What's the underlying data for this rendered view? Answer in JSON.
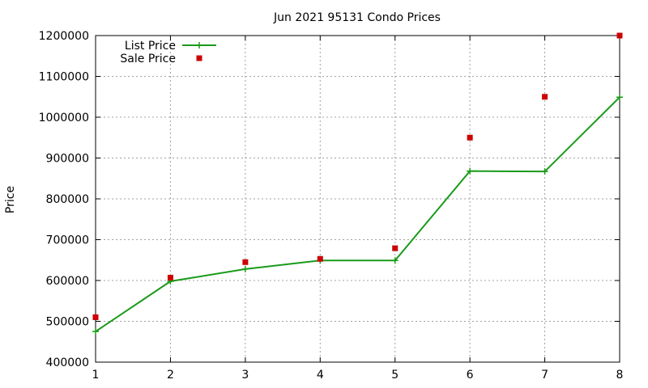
{
  "chart_data": {
    "type": "line",
    "title": "Jun 2021 95131 Condo Prices",
    "xlabel": "",
    "ylabel": "Price",
    "xlim": [
      1,
      8
    ],
    "ylim": [
      400000,
      1200000
    ],
    "x_ticks": [
      "1",
      "2",
      "3",
      "4",
      "5",
      "6",
      "7",
      "8"
    ],
    "y_ticks": [
      "400000",
      "500000",
      "600000",
      "700000",
      "800000",
      "900000",
      "1000000",
      "1100000",
      "1200000"
    ],
    "grid": true,
    "legend_position": "top-left",
    "series": [
      {
        "name": "List Price",
        "style": "line-with-plus-markers",
        "color": "#1a9a1a",
        "x": [
          1,
          2,
          3,
          4,
          5,
          6,
          7,
          8
        ],
        "y": [
          475000,
          598000,
          628000,
          649000,
          649000,
          868000,
          867000,
          1049000
        ]
      },
      {
        "name": "Sale Price",
        "style": "square-markers",
        "color": "#cc0000",
        "x": [
          1,
          2,
          3,
          4,
          5,
          6,
          7,
          8
        ],
        "y": [
          510000,
          607000,
          645000,
          653000,
          679000,
          950000,
          1050000,
          1200000
        ]
      }
    ]
  }
}
